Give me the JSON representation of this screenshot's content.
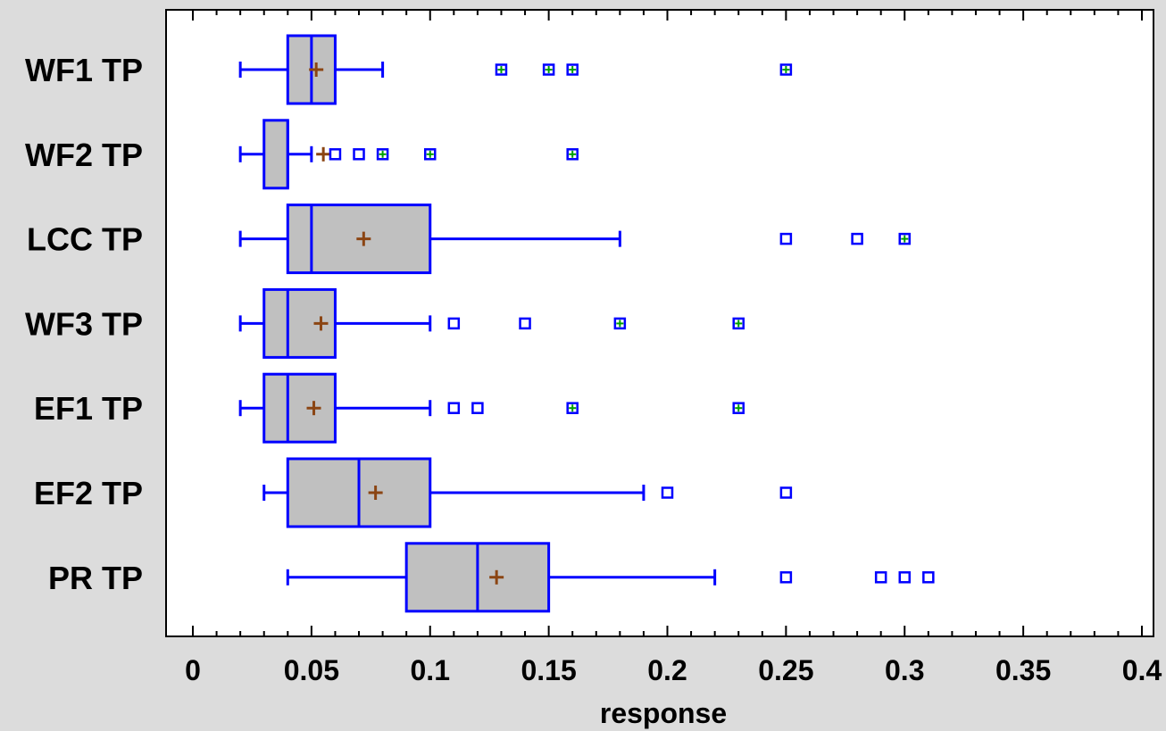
{
  "chart_data": {
    "type": "box",
    "orientation": "horizontal",
    "xlabel": "response",
    "xlim": [
      0,
      0.4
    ],
    "xticks": [
      0,
      0.05,
      0.1,
      0.15,
      0.2,
      0.25,
      0.3,
      0.35,
      0.4
    ],
    "xtick_labels": [
      "0",
      "0.05",
      "0.1",
      "0.15",
      "0.2",
      "0.25",
      "0.3",
      "0.35",
      "0.4"
    ],
    "grid": false,
    "colors": {
      "box_fill": "#c0c0c0",
      "box_line": "#0000ff",
      "mean_marker": "#8b4513",
      "outlier": "#0000ff",
      "far_outlier_center": "#00a000",
      "background": "#dcdcdc",
      "plot_background": "#ffffff"
    },
    "series": [
      {
        "name": "WF1 TP",
        "whisker_low": 0.02,
        "q1": 0.04,
        "median": 0.05,
        "q3": 0.06,
        "whisker_high": 0.08,
        "mean": 0.052,
        "outliers": [],
        "far_outliers": [
          0.13,
          0.15,
          0.16,
          0.25
        ]
      },
      {
        "name": "WF2 TP",
        "whisker_low": 0.02,
        "q1": 0.03,
        "median": 0.04,
        "q3": 0.04,
        "whisker_high": 0.05,
        "mean": 0.055,
        "outliers": [
          0.06,
          0.07
        ],
        "far_outliers": [
          0.08,
          0.1,
          0.16
        ]
      },
      {
        "name": "LCC TP",
        "whisker_low": 0.02,
        "q1": 0.04,
        "median": 0.05,
        "q3": 0.1,
        "whisker_high": 0.18,
        "mean": 0.072,
        "outliers": [
          0.25,
          0.28
        ],
        "far_outliers": [
          0.3
        ]
      },
      {
        "name": "WF3 TP",
        "whisker_low": 0.02,
        "q1": 0.03,
        "median": 0.04,
        "q3": 0.06,
        "whisker_high": 0.1,
        "mean": 0.054,
        "outliers": [
          0.11,
          0.14
        ],
        "far_outliers": [
          0.18,
          0.23
        ]
      },
      {
        "name": "EF1 TP",
        "whisker_low": 0.02,
        "q1": 0.03,
        "median": 0.04,
        "q3": 0.06,
        "whisker_high": 0.1,
        "mean": 0.051,
        "outliers": [
          0.11,
          0.12
        ],
        "far_outliers": [
          0.16,
          0.23
        ]
      },
      {
        "name": "EF2 TP",
        "whisker_low": 0.03,
        "q1": 0.04,
        "median": 0.07,
        "q3": 0.1,
        "whisker_high": 0.19,
        "mean": 0.077,
        "outliers": [
          0.2,
          0.25
        ],
        "far_outliers": []
      },
      {
        "name": "PR TP",
        "whisker_low": 0.04,
        "q1": 0.09,
        "median": 0.12,
        "q3": 0.15,
        "whisker_high": 0.22,
        "mean": 0.128,
        "outliers": [
          0.25,
          0.29,
          0.3,
          0.31
        ],
        "far_outliers": []
      }
    ]
  }
}
